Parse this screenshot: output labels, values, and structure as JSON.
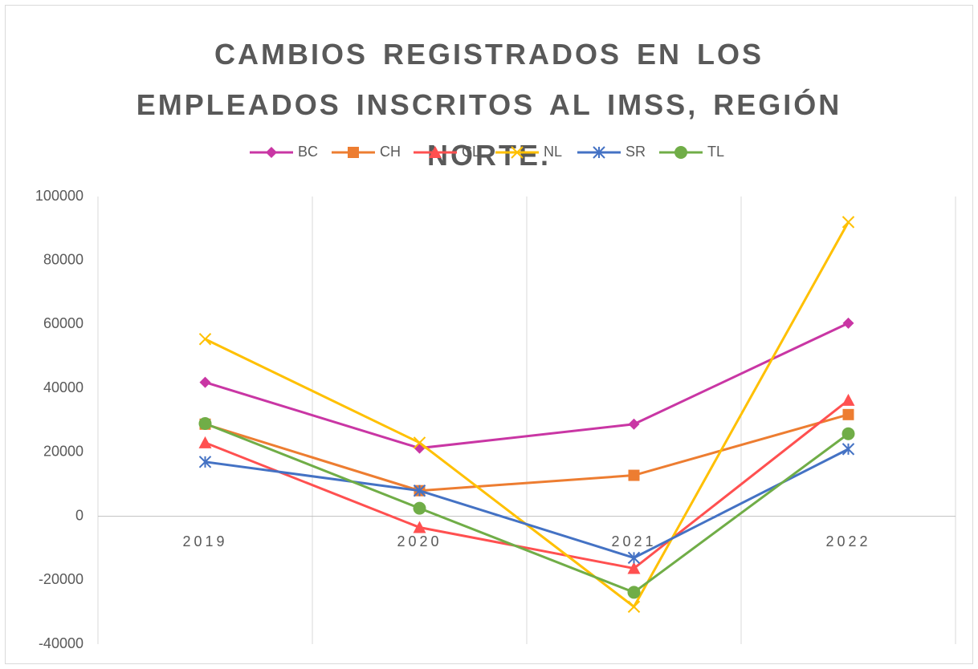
{
  "chart_data": {
    "type": "line",
    "title": "CAMBIOS REGISTRADOS EN LOS EMPLEADOS INSCRITOS AL IMSS, REGIÓN NORTE.",
    "categories": [
      "2019",
      "2020",
      "2021",
      "2022"
    ],
    "series": [
      {
        "name": "BC",
        "color": "#c936a4",
        "marker": "diamond",
        "values": [
          41900,
          21300,
          28800,
          60400
        ]
      },
      {
        "name": "CH",
        "color": "#ed7d31",
        "marker": "square",
        "values": [
          28800,
          8000,
          12800,
          31800
        ]
      },
      {
        "name": "CL",
        "color": "#ff5050",
        "marker": "triangle",
        "values": [
          23000,
          -3500,
          -16300,
          36300
        ]
      },
      {
        "name": "NL",
        "color": "#ffc000",
        "marker": "x",
        "values": [
          55400,
          23000,
          -28300,
          92000
        ]
      },
      {
        "name": "SR",
        "color": "#4472c4",
        "marker": "star",
        "values": [
          17000,
          8000,
          -13000,
          21000
        ]
      },
      {
        "name": "TL",
        "color": "#70ad47",
        "marker": "circle",
        "values": [
          29000,
          2500,
          -23800,
          25800
        ]
      }
    ],
    "ylim": [
      -40000,
      100000
    ],
    "yticks": [
      -40000,
      -20000,
      0,
      20000,
      40000,
      60000,
      80000,
      100000
    ],
    "legend": "top",
    "grid": "vertical"
  }
}
